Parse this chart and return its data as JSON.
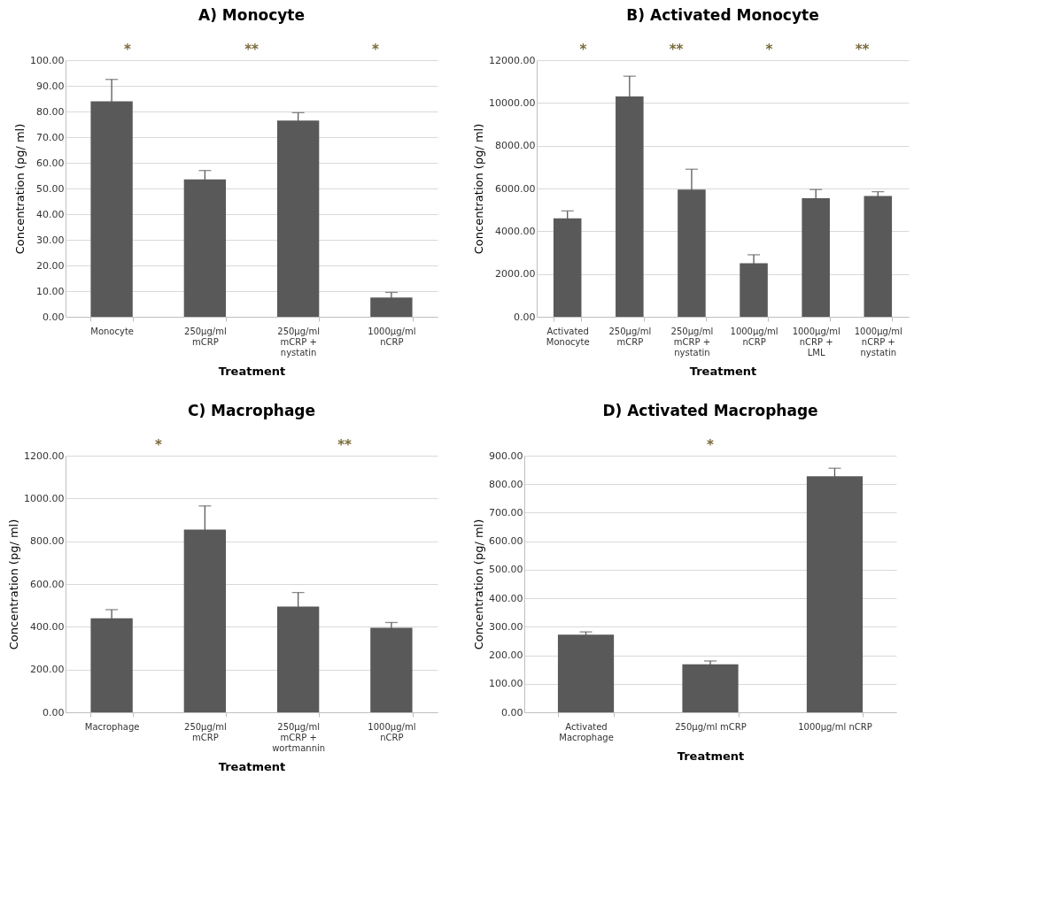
{
  "chart_data": [
    {
      "type": "bar",
      "title": "A)  Monocyte",
      "xlabel": "Treatment",
      "ylabel": "Concentration (pg/ ml)",
      "categories": [
        "Monocyte",
        "250µg/ml\nmCRP",
        "250µg/ml\nmCRP +\nnystatin",
        "1000µg/ml\nnCRP"
      ],
      "values": [
        84,
        53.5,
        76.5,
        7.5
      ],
      "errors": [
        8.5,
        3.5,
        3,
        2
      ],
      "color": "#595959",
      "ylim": [
        0,
        100
      ],
      "yticks": [
        {
          "value": 0,
          "label": "0.00"
        },
        {
          "value": 10,
          "label": "10.00"
        },
        {
          "value": 20,
          "label": "20.00"
        },
        {
          "value": 30,
          "label": "30.00"
        },
        {
          "value": 40,
          "label": "40.00"
        },
        {
          "value": 50,
          "label": "50.00"
        },
        {
          "value": 60,
          "label": "60.00"
        },
        {
          "value": 70,
          "label": "70.00"
        },
        {
          "value": 80,
          "label": "80.00"
        },
        {
          "value": 90,
          "label": "90.00"
        },
        {
          "value": 100,
          "label": "100.00"
        }
      ],
      "grid": "y",
      "annotations": [
        "*",
        "**",
        "*"
      ]
    },
    {
      "type": "bar",
      "title": "B)  Activated Monocyte",
      "xlabel": "Treatment",
      "ylabel": "Concentration (pg/ ml)",
      "categories": [
        "Activated\nMonocyte",
        "250µg/ml\nmCRP",
        "250µg/ml\nmCRP +\nnystatin",
        "1000µg/ml\nnCRP",
        "1000µg/ml\nnCRP +\nLML",
        "1000µg/ml\nnCRP +\nnystatin"
      ],
      "values": [
        4600,
        10300,
        5950,
        2500,
        5550,
        5650
      ],
      "errors": [
        350,
        950,
        950,
        400,
        400,
        200
      ],
      "color": "#595959",
      "ylim": [
        0,
        12000
      ],
      "yticks": [
        {
          "value": 0,
          "label": "0.00"
        },
        {
          "value": 2000,
          "label": "2000.00"
        },
        {
          "value": 4000,
          "label": "4000.00"
        },
        {
          "value": 6000,
          "label": "6000.00"
        },
        {
          "value": 8000,
          "label": "8000.00"
        },
        {
          "value": 10000,
          "label": "10000.00"
        },
        {
          "value": 12000,
          "label": "12000.00"
        }
      ],
      "grid": "y",
      "annotations": [
        "*",
        "**",
        "*",
        "**"
      ]
    },
    {
      "type": "bar",
      "title": "C)  Macrophage",
      "xlabel": "Treatment",
      "ylabel": "Concentration (pg/ ml)",
      "categories": [
        "Macrophage",
        "250µg/ml\nmCRP",
        "250µg/ml\nmCRP +\nwortmannin",
        "1000µg/ml\nnCRP"
      ],
      "values": [
        440,
        855,
        495,
        395
      ],
      "errors": [
        40,
        110,
        65,
        25
      ],
      "color": "#595959",
      "ylim": [
        0,
        1200
      ],
      "yticks": [
        {
          "value": 0,
          "label": "0.00"
        },
        {
          "value": 200,
          "label": "200.00"
        },
        {
          "value": 400,
          "label": "400.00"
        },
        {
          "value": 600,
          "label": "600.00"
        },
        {
          "value": 800,
          "label": "800.00"
        },
        {
          "value": 1000,
          "label": "1000.00"
        },
        {
          "value": 1200,
          "label": "1200.00"
        }
      ],
      "grid": "y",
      "annotations": [
        "*",
        "**"
      ]
    },
    {
      "type": "bar",
      "title": "D)  Activated Macrophage",
      "xlabel": "Treatment",
      "ylabel": "Concentration (pg/ ml)",
      "categories": [
        "Activated\nMacrophage",
        "250µg/ml mCRP",
        "1000µg/ml nCRP"
      ],
      "values": [
        272,
        168,
        828
      ],
      "errors": [
        10,
        12,
        28
      ],
      "color": "#595959",
      "ylim": [
        0,
        900
      ],
      "yticks": [
        {
          "value": 0,
          "label": "0.00"
        },
        {
          "value": 100,
          "label": "100.00"
        },
        {
          "value": 200,
          "label": "200.00"
        },
        {
          "value": 300,
          "label": "300.00"
        },
        {
          "value": 400,
          "label": "400.00"
        },
        {
          "value": 500,
          "label": "500.00"
        },
        {
          "value": 600,
          "label": "600.00"
        },
        {
          "value": 700,
          "label": "700.00"
        },
        {
          "value": 800,
          "label": "800.00"
        },
        {
          "value": 900,
          "label": "900.00"
        }
      ],
      "grid": "y",
      "annotations": [
        "*"
      ]
    }
  ]
}
